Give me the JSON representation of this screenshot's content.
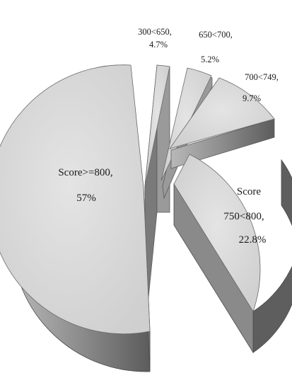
{
  "chart_data": {
    "type": "pie",
    "style": "3d-exploded",
    "slices": [
      {
        "label": "300<650",
        "value": 4.7,
        "display": "4.7%"
      },
      {
        "label": "650<700",
        "value": 5.2,
        "display": "5.2%"
      },
      {
        "label": "700<749",
        "value": 9.7,
        "display": "9.7%"
      },
      {
        "label": "Score 750<800",
        "label_lines": [
          "Score",
          "750<800,",
          "22.8%"
        ],
        "value": 22.8,
        "display": "22.8%"
      },
      {
        "label": "Score>=800",
        "value": 57,
        "display": "57%"
      }
    ],
    "colors": {
      "top": "#dcdcdc",
      "side_light": "#9a9a9a",
      "side_dark": "#6e6e6e",
      "edge": "#5a5a5a"
    }
  }
}
